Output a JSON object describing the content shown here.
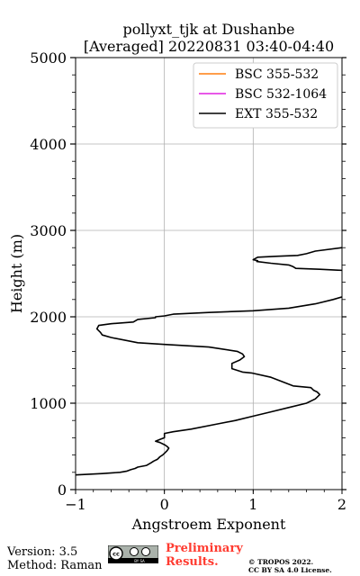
{
  "chart_data": {
    "type": "line",
    "title": "pollyxt_tjk at Dushanbe",
    "subtitle": "[Averaged] 20220831 03:40-04:40",
    "xlabel": "Angstroem Exponent",
    "ylabel": "Height (m)",
    "xlim": [
      -1,
      2
    ],
    "ylim": [
      0,
      5000
    ],
    "xticks": [
      "−1",
      "0",
      "1",
      "2"
    ],
    "yticks": [
      "0",
      "1000",
      "2000",
      "3000",
      "4000",
      "5000"
    ],
    "grid": true,
    "legend_position": "top-right",
    "series": [
      {
        "name": "BSC 355-532",
        "color": "#ff7f0e",
        "x": [],
        "y": []
      },
      {
        "name": "BSC 532-1064",
        "color": "#e020e0",
        "x": [],
        "y": []
      },
      {
        "name": "EXT 355-532",
        "color": "#000000",
        "x": [
          -1.0,
          -0.7,
          -0.5,
          -0.42,
          -0.38,
          -0.33,
          -0.3,
          -0.2,
          -0.15,
          -0.12,
          -0.08,
          -0.05,
          -0.02,
          0.0,
          0.02,
          0.03,
          0.04,
          0.05,
          0.03,
          0.0,
          -0.05,
          -0.1,
          -0.05,
          0.0,
          0.0,
          0.1,
          0.3,
          0.6,
          0.8,
          1.0,
          1.2,
          1.4,
          1.6,
          1.7,
          1.75,
          1.72,
          1.68,
          1.65,
          1.45,
          1.2,
          0.98,
          0.88,
          0.76,
          0.76,
          0.85,
          0.9,
          0.88,
          0.82,
          0.5,
          0.0,
          -0.3,
          -0.6,
          -0.7,
          -0.72,
          -0.76,
          -0.74,
          -0.6,
          -0.35,
          -0.3,
          -0.1,
          -0.1,
          0.0,
          0.1,
          0.5,
          1.0,
          1.4,
          1.7,
          1.9,
          2.0,
          2.2
        ],
        "y": [
          170,
          185,
          200,
          215,
          230,
          245,
          260,
          280,
          310,
          330,
          350,
          380,
          400,
          420,
          440,
          450,
          465,
          480,
          500,
          520,
          545,
          560,
          580,
          600,
          650,
          670,
          700,
          760,
          800,
          850,
          900,
          950,
          1000,
          1050,
          1100,
          1130,
          1150,
          1180,
          1200,
          1300,
          1350,
          1360,
          1400,
          1460,
          1500,
          1540,
          1570,
          1600,
          1650,
          1680,
          1700,
          1760,
          1790,
          1820,
          1860,
          1900,
          1920,
          1940,
          1970,
          1990,
          2000,
          2010,
          2030,
          2050,
          2070,
          2100,
          2150,
          2200,
          2230,
          2270
        ]
      },
      {
        "name": "EXT 355-532",
        "color": "#000000",
        "x": [
          2.2,
          1.95,
          1.75,
          1.48,
          1.45,
          1.4,
          1.2,
          1.04,
          1.05,
          1.0,
          1.05,
          1.25,
          1.5,
          1.6,
          1.7,
          2.0
        ],
        "y": [
          2530,
          2540,
          2550,
          2560,
          2580,
          2600,
          2620,
          2640,
          2650,
          2660,
          2690,
          2700,
          2710,
          2730,
          2760,
          2800
        ]
      }
    ]
  },
  "footer": {
    "version": "Version: 3.5",
    "method": "Method: Raman",
    "prelim_line1": "Preliminary",
    "prelim_line2": "Results.",
    "copyright_line1": "© TROPOS 2022.",
    "copyright_line2": "CC BY SA 4.0 License.",
    "badge_text": "BY SA"
  }
}
